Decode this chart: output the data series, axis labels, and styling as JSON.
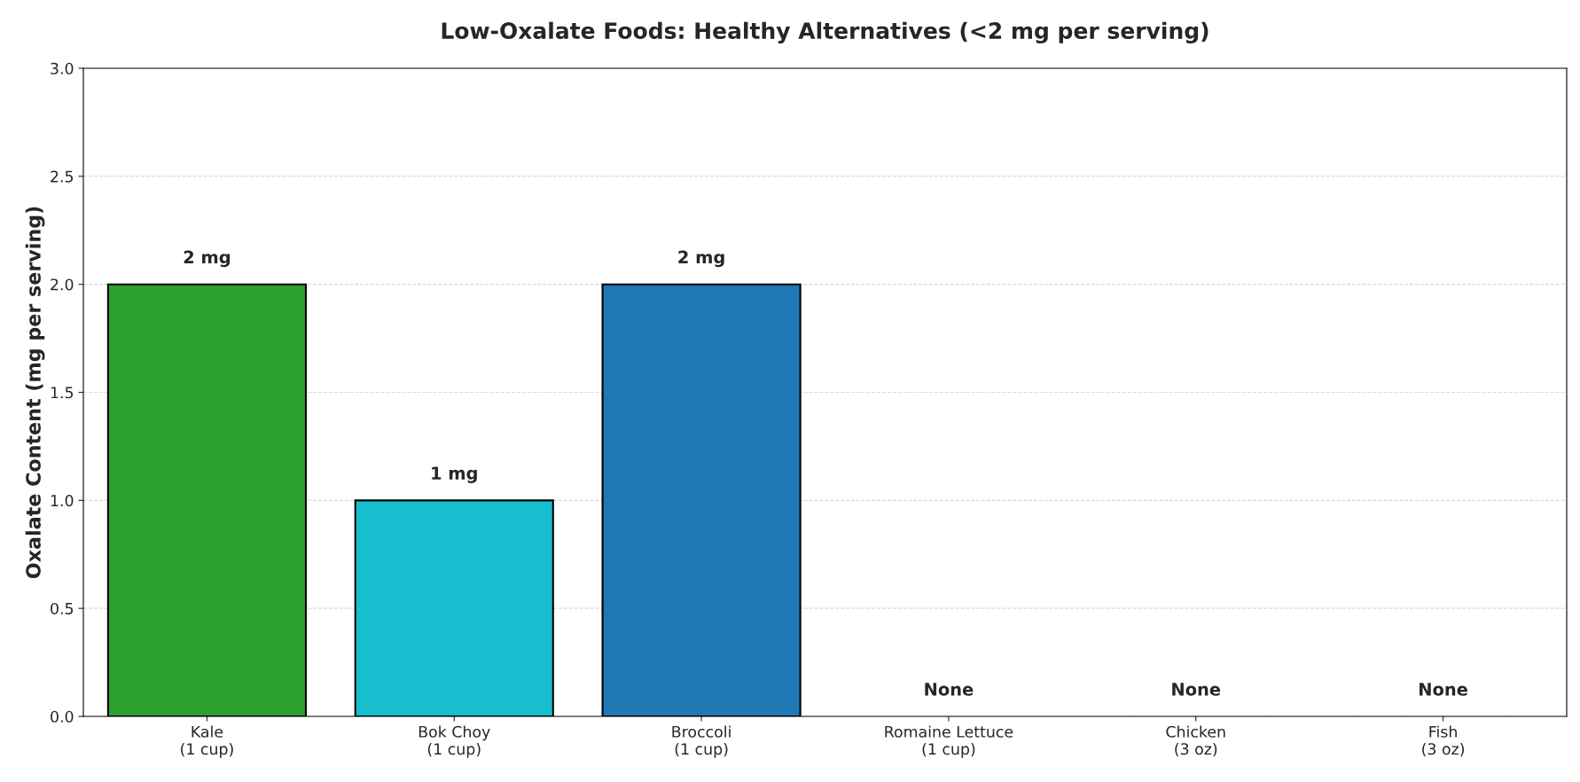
{
  "chart_data": {
    "type": "bar",
    "title": "Low-Oxalate Foods: Healthy Alternatives (<2 mg per serving)",
    "ylabel": "Oxalate Content (mg per serving)",
    "categories": [
      "Kale\n(1 cup)",
      "Bok Choy\n(1 cup)",
      "Broccoli\n(1 cup)",
      "Romaine Lettuce\n(1 cup)",
      "Chicken\n(3 oz)",
      "Fish\n(3 oz)"
    ],
    "values": [
      2,
      1,
      2,
      0,
      0,
      0
    ],
    "colors": [
      "#2ca02c",
      "#17becf",
      "#1f77b4",
      null,
      null,
      null
    ],
    "value_labels": [
      "2 mg",
      "1 mg",
      "2 mg",
      "None",
      "None",
      "None"
    ],
    "ylim": [
      0,
      3
    ],
    "yticks": [
      {
        "value": 0,
        "label": "0.0"
      },
      {
        "value": 0.5,
        "label": "0.5"
      },
      {
        "value": 1,
        "label": "1.0"
      },
      {
        "value": 1.5,
        "label": "1.5"
      },
      {
        "value": 2,
        "label": "2.0"
      },
      {
        "value": 2.5,
        "label": "2.5"
      },
      {
        "value": 3,
        "label": "3.0"
      }
    ],
    "grid": "y"
  }
}
